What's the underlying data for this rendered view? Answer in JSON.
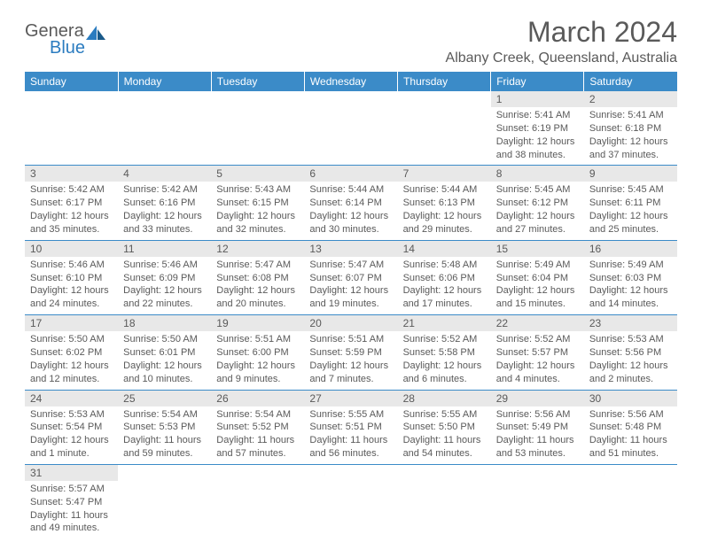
{
  "logo": {
    "text1": "Genera",
    "text2": "Blue"
  },
  "title": "March 2024",
  "location": "Albany Creek, Queensland, Australia",
  "colors": {
    "header_bg": "#3b8bc8",
    "header_text": "#ffffff",
    "daynum_bg": "#e8e8e8",
    "text": "#5a5a5a",
    "border": "#3b8bc8",
    "logo_blue": "#2b7cc0"
  },
  "weekdays": [
    "Sunday",
    "Monday",
    "Tuesday",
    "Wednesday",
    "Thursday",
    "Friday",
    "Saturday"
  ],
  "weeks": [
    [
      null,
      null,
      null,
      null,
      null,
      {
        "n": "1",
        "sr": "5:41 AM",
        "ss": "6:19 PM",
        "dl": "12 hours and 38 minutes."
      },
      {
        "n": "2",
        "sr": "5:41 AM",
        "ss": "6:18 PM",
        "dl": "12 hours and 37 minutes."
      }
    ],
    [
      {
        "n": "3",
        "sr": "5:42 AM",
        "ss": "6:17 PM",
        "dl": "12 hours and 35 minutes."
      },
      {
        "n": "4",
        "sr": "5:42 AM",
        "ss": "6:16 PM",
        "dl": "12 hours and 33 minutes."
      },
      {
        "n": "5",
        "sr": "5:43 AM",
        "ss": "6:15 PM",
        "dl": "12 hours and 32 minutes."
      },
      {
        "n": "6",
        "sr": "5:44 AM",
        "ss": "6:14 PM",
        "dl": "12 hours and 30 minutes."
      },
      {
        "n": "7",
        "sr": "5:44 AM",
        "ss": "6:13 PM",
        "dl": "12 hours and 29 minutes."
      },
      {
        "n": "8",
        "sr": "5:45 AM",
        "ss": "6:12 PM",
        "dl": "12 hours and 27 minutes."
      },
      {
        "n": "9",
        "sr": "5:45 AM",
        "ss": "6:11 PM",
        "dl": "12 hours and 25 minutes."
      }
    ],
    [
      {
        "n": "10",
        "sr": "5:46 AM",
        "ss": "6:10 PM",
        "dl": "12 hours and 24 minutes."
      },
      {
        "n": "11",
        "sr": "5:46 AM",
        "ss": "6:09 PM",
        "dl": "12 hours and 22 minutes."
      },
      {
        "n": "12",
        "sr": "5:47 AM",
        "ss": "6:08 PM",
        "dl": "12 hours and 20 minutes."
      },
      {
        "n": "13",
        "sr": "5:47 AM",
        "ss": "6:07 PM",
        "dl": "12 hours and 19 minutes."
      },
      {
        "n": "14",
        "sr": "5:48 AM",
        "ss": "6:06 PM",
        "dl": "12 hours and 17 minutes."
      },
      {
        "n": "15",
        "sr": "5:49 AM",
        "ss": "6:04 PM",
        "dl": "12 hours and 15 minutes."
      },
      {
        "n": "16",
        "sr": "5:49 AM",
        "ss": "6:03 PM",
        "dl": "12 hours and 14 minutes."
      }
    ],
    [
      {
        "n": "17",
        "sr": "5:50 AM",
        "ss": "6:02 PM",
        "dl": "12 hours and 12 minutes."
      },
      {
        "n": "18",
        "sr": "5:50 AM",
        "ss": "6:01 PM",
        "dl": "12 hours and 10 minutes."
      },
      {
        "n": "19",
        "sr": "5:51 AM",
        "ss": "6:00 PM",
        "dl": "12 hours and 9 minutes."
      },
      {
        "n": "20",
        "sr": "5:51 AM",
        "ss": "5:59 PM",
        "dl": "12 hours and 7 minutes."
      },
      {
        "n": "21",
        "sr": "5:52 AM",
        "ss": "5:58 PM",
        "dl": "12 hours and 6 minutes."
      },
      {
        "n": "22",
        "sr": "5:52 AM",
        "ss": "5:57 PM",
        "dl": "12 hours and 4 minutes."
      },
      {
        "n": "23",
        "sr": "5:53 AM",
        "ss": "5:56 PM",
        "dl": "12 hours and 2 minutes."
      }
    ],
    [
      {
        "n": "24",
        "sr": "5:53 AM",
        "ss": "5:54 PM",
        "dl": "12 hours and 1 minute."
      },
      {
        "n": "25",
        "sr": "5:54 AM",
        "ss": "5:53 PM",
        "dl": "11 hours and 59 minutes."
      },
      {
        "n": "26",
        "sr": "5:54 AM",
        "ss": "5:52 PM",
        "dl": "11 hours and 57 minutes."
      },
      {
        "n": "27",
        "sr": "5:55 AM",
        "ss": "5:51 PM",
        "dl": "11 hours and 56 minutes."
      },
      {
        "n": "28",
        "sr": "5:55 AM",
        "ss": "5:50 PM",
        "dl": "11 hours and 54 minutes."
      },
      {
        "n": "29",
        "sr": "5:56 AM",
        "ss": "5:49 PM",
        "dl": "11 hours and 53 minutes."
      },
      {
        "n": "30",
        "sr": "5:56 AM",
        "ss": "5:48 PM",
        "dl": "11 hours and 51 minutes."
      }
    ],
    [
      {
        "n": "31",
        "sr": "5:57 AM",
        "ss": "5:47 PM",
        "dl": "11 hours and 49 minutes."
      },
      null,
      null,
      null,
      null,
      null,
      null
    ]
  ],
  "labels": {
    "sunrise": "Sunrise:",
    "sunset": "Sunset:",
    "daylight": "Daylight:"
  }
}
